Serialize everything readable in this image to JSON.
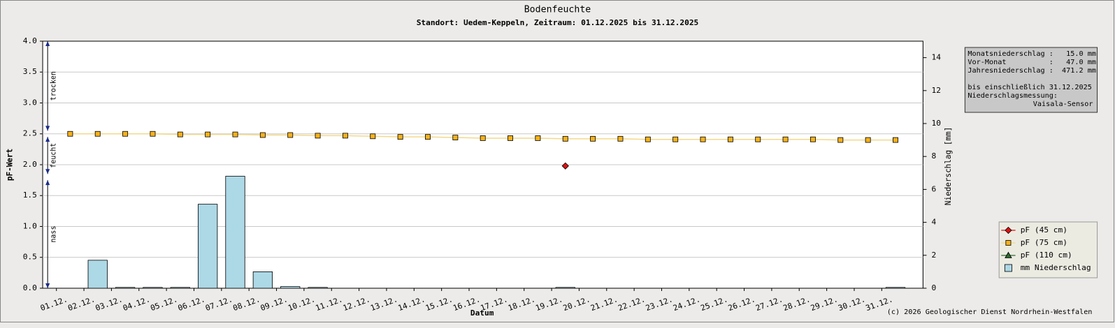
{
  "chart_data": {
    "type": "line",
    "title": "Bodenfeuchte",
    "subtitle": "Standort: Uedem-Keppeln, Zeitraum: 01.12.2025 bis 31.12.2025",
    "x_label": "Datum",
    "y_label": "pF-Wert",
    "y2_label": "Niederschlag [mm]",
    "categories": [
      "01.12.",
      "02.12.",
      "03.12.",
      "04.12.",
      "05.12.",
      "06.12.",
      "07.12.",
      "08.12.",
      "09.12.",
      "10.12.",
      "11.12.",
      "12.12.",
      "13.12.",
      "14.12.",
      "15.12.",
      "16.12.",
      "17.12.",
      "18.12.",
      "19.12.",
      "20.12.",
      "21.12.",
      "22.12.",
      "23.12.",
      "24.12.",
      "25.12.",
      "26.12.",
      "27.12.",
      "28.12.",
      "29.12.",
      "30.12.",
      "31.12."
    ],
    "ylim": [
      0,
      4
    ],
    "yticks": [
      {
        "value": 0,
        "label": "0.0"
      },
      0.5,
      {
        "value": 1,
        "label": "1.0"
      },
      1.5,
      {
        "value": 2,
        "label": "2.0"
      },
      2.5,
      {
        "value": 3,
        "label": "3.0"
      },
      3.5,
      {
        "value": 4,
        "label": "4.0"
      }
    ],
    "y2lim": [
      0,
      15
    ],
    "y2ticks": [
      0,
      2,
      4,
      6,
      8,
      10,
      12,
      14
    ],
    "grid": true,
    "zones": [
      {
        "label": "nass",
        "from": 0,
        "to": 1.75
      },
      {
        "label": "feucht",
        "from": 1.85,
        "to": 2.45
      },
      {
        "label": "trocken",
        "from": 2.55,
        "to": 4
      }
    ],
    "series": [
      {
        "name": "pF (45 cm)",
        "type": "line",
        "marker": "diamond",
        "color": "#dd1111",
        "values": [
          null,
          null,
          null,
          null,
          null,
          null,
          null,
          null,
          null,
          null,
          null,
          null,
          null,
          null,
          null,
          null,
          null,
          null,
          1.98,
          null,
          null,
          null,
          null,
          null,
          null,
          null,
          null,
          null,
          null,
          null,
          null
        ]
      },
      {
        "name": "pF (75 cm)",
        "type": "line",
        "marker": "square",
        "color": "#f5b21c",
        "line_color": "#f3d98a",
        "values": [
          2.5,
          2.5,
          2.5,
          2.5,
          2.49,
          2.49,
          2.49,
          2.48,
          2.48,
          2.47,
          2.47,
          2.46,
          2.45,
          2.45,
          2.44,
          2.43,
          2.43,
          2.43,
          2.42,
          2.42,
          2.42,
          2.41,
          2.41,
          2.41,
          2.41,
          2.41,
          2.41,
          2.41,
          2.4,
          2.4,
          2.4
        ]
      },
      {
        "name": "pF (110 cm)",
        "type": "line",
        "marker": "triangle",
        "color": "#2e6b2e",
        "values": [
          null,
          null,
          null,
          null,
          null,
          null,
          null,
          null,
          null,
          null,
          null,
          null,
          null,
          null,
          null,
          null,
          null,
          null,
          null,
          null,
          null,
          null,
          null,
          null,
          null,
          null,
          null,
          null,
          null,
          null,
          null
        ]
      },
      {
        "name": "mm  Niederschlag",
        "type": "bar",
        "axis": "y2",
        "color": "#add8e6",
        "values": [
          0,
          1.7,
          0.05,
          0.05,
          0.05,
          5.1,
          6.8,
          1.0,
          0.1,
          0.05,
          0,
          0,
          0,
          0,
          0,
          0,
          0,
          0,
          0.05,
          0,
          0,
          0,
          0,
          0,
          0,
          0,
          0,
          0,
          0,
          0,
          0.05
        ]
      }
    ],
    "legend": "lower right",
    "info": [
      "Monatsniederschlag :   15.0 mm",
      "Vor-Monat          :   47.0 mm",
      "Jahresniederschlag :  471.2 mm",
      "bis einschließlich 31.12.2025",
      "Niederschlagsmessung:",
      "Vaisala-Sensor"
    ],
    "copyright": "(c) 2026 Geologischer Dienst Nordrhein-Westfalen"
  }
}
